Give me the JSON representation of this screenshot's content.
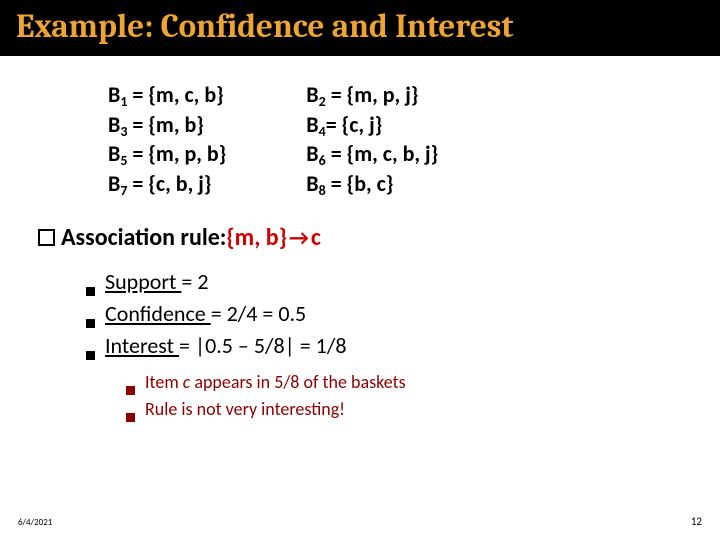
{
  "title": "Example: Confidence and Interest",
  "baskets": {
    "left": [
      {
        "label": "B",
        "sub": "1",
        "rest": " = {m, c, b}"
      },
      {
        "label": "B",
        "sub": "3",
        "rest": " = {m, b}"
      },
      {
        "label": "B",
        "sub": "5",
        "rest": " = {m, p, b}"
      },
      {
        "label": "B",
        "sub": "7",
        "rest": " = {c, b, j}"
      }
    ],
    "right": [
      {
        "label": "B",
        "sub": "2",
        "rest": " = {m, p, j}"
      },
      {
        "label": "B",
        "sub": "4",
        "rest": "= {c, j}"
      },
      {
        "label": "B",
        "sub": "6",
        "rest": " = {m, c, b, j}"
      },
      {
        "label": "B",
        "sub": "8",
        "rest": " = {b, c}"
      }
    ]
  },
  "assoc": {
    "prefix": "Association rule: ",
    "lhs": "{m, b} ",
    "arrow": "→",
    "rhs": "c"
  },
  "metrics": [
    {
      "name": "Support ",
      "value": "= 2"
    },
    {
      "name": "Confidence ",
      "value": "= 2/4 = 0.5"
    },
    {
      "name": "Interest ",
      "value": "= |0.5 – 5/8| = 1/8"
    }
  ],
  "notes": {
    "line1a": "Item ",
    "line1b": "c",
    "line1c": " appears in 5/8 of the baskets",
    "line2": "Rule is not very interesting!"
  },
  "footer": {
    "date": "6/4/2021",
    "page": "12"
  },
  "colors": {
    "title_bg": "#000000",
    "title_fg": "#eda433",
    "accent_red": "#cc0000",
    "note_red": "#8c0000"
  }
}
